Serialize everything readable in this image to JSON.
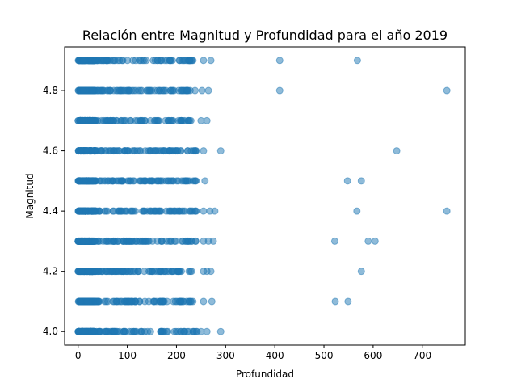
{
  "chart_data": {
    "type": "scatter",
    "title": "Relación entre Magnitud y Profundidad para el año 2019",
    "xlabel": "Profundidad",
    "ylabel": "Magnitud",
    "xlim": [
      -27.5,
      787.5
    ],
    "ylim": [
      3.955,
      4.945
    ],
    "xticks": [
      0,
      100,
      200,
      300,
      400,
      500,
      600,
      700
    ],
    "yticks": [
      4.0,
      4.2,
      4.4,
      4.6,
      4.8
    ],
    "ytick_labels": [
      "4.0",
      "4.2",
      "4.4",
      "4.6",
      "4.8"
    ],
    "grid": false,
    "marker_color": "#1f77b4",
    "marker_alpha": 0.5,
    "magnitude_levels": [
      4.0,
      4.1,
      4.2,
      4.3,
      4.4,
      4.5,
      4.6,
      4.7,
      4.8,
      4.9
    ],
    "dense_band_max_depth": {
      "4.0": 242,
      "4.1": 238,
      "4.2": 235,
      "4.3": 240,
      "4.4": 242,
      "4.5": 240,
      "4.6": 245,
      "4.7": 232,
      "4.8": 240,
      "4.9": 240
    },
    "series": [
      {
        "points": [
          [
            250,
            4.0
          ],
          [
            262,
            4.0
          ],
          [
            290,
            4.0
          ],
          [
            255,
            4.1
          ],
          [
            272,
            4.1
          ],
          [
            523,
            4.1
          ],
          [
            549,
            4.1
          ],
          [
            255,
            4.2
          ],
          [
            262,
            4.2
          ],
          [
            270,
            4.2
          ],
          [
            576,
            4.2
          ],
          [
            255,
            4.3
          ],
          [
            265,
            4.3
          ],
          [
            275,
            4.3
          ],
          [
            522,
            4.3
          ],
          [
            590,
            4.3
          ],
          [
            604,
            4.3
          ],
          [
            255,
            4.4
          ],
          [
            268,
            4.4
          ],
          [
            278,
            4.4
          ],
          [
            567,
            4.4
          ],
          [
            750,
            4.4
          ],
          [
            258,
            4.5
          ],
          [
            548,
            4.5
          ],
          [
            576,
            4.5
          ],
          [
            255,
            4.6
          ],
          [
            290,
            4.6
          ],
          [
            648,
            4.6
          ],
          [
            250,
            4.7
          ],
          [
            262,
            4.7
          ],
          [
            252,
            4.8
          ],
          [
            265,
            4.8
          ],
          [
            410,
            4.8
          ],
          [
            750,
            4.8
          ],
          [
            255,
            4.9
          ],
          [
            270,
            4.9
          ],
          [
            410,
            4.9
          ],
          [
            568,
            4.9
          ]
        ]
      }
    ]
  }
}
